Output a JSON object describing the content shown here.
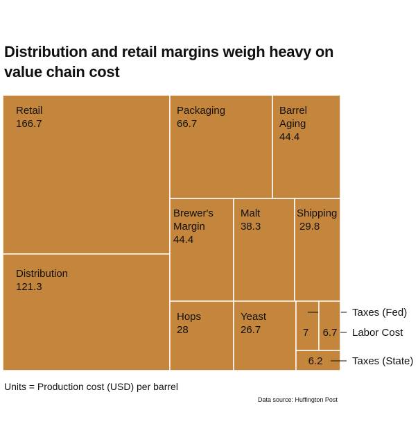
{
  "title_lines": [
    "Distribution and retail margins weigh heavy on",
    "value chain cost"
  ],
  "units_note": "Units = Production cost (USD) per barrel",
  "source_note": "Data source: Huffington Post",
  "colors": {
    "fill": "#C4853C",
    "border": "#ffffff",
    "leader": "#111111",
    "text": "#111111"
  },
  "chart_data": {
    "type": "treemap",
    "title": "Distribution and retail margins weigh heavy on value chain cost",
    "units": "Production cost (USD) per barrel",
    "items": [
      {
        "name": "Retail",
        "label_lines": [
          "Retail"
        ],
        "value": 166.7,
        "value_label": "166.7"
      },
      {
        "name": "Distribution",
        "label_lines": [
          "Distribution"
        ],
        "value": 121.3,
        "value_label": "121.3"
      },
      {
        "name": "Packaging",
        "label_lines": [
          "Packaging"
        ],
        "value": 66.7,
        "value_label": "66.7"
      },
      {
        "name": "Barrel Aging",
        "label_lines": [
          "Barrel",
          "Aging"
        ],
        "value": 44.4,
        "value_label": "44.4"
      },
      {
        "name": "Brewer's Margin",
        "label_lines": [
          "Brewer's",
          "Margin"
        ],
        "value": 44.4,
        "value_label": "44.4"
      },
      {
        "name": "Malt",
        "label_lines": [
          "Malt"
        ],
        "value": 38.3,
        "value_label": "38.3"
      },
      {
        "name": "Shipping",
        "label_lines": [
          "Shipping"
        ],
        "value": 29.8,
        "value_label": "29.8"
      },
      {
        "name": "Hops",
        "label_lines": [
          "Hops"
        ],
        "value": 28,
        "value_label": "28"
      },
      {
        "name": "Yeast",
        "label_lines": [
          "Yeast"
        ],
        "value": 26.7,
        "value_label": "26.7"
      },
      {
        "name": "Taxes (Fed)",
        "label_lines": [],
        "value": 7,
        "value_label": "7",
        "callout": "Taxes (Fed)"
      },
      {
        "name": "Labor Cost",
        "label_lines": [],
        "value": 6.7,
        "value_label": "6.7",
        "callout": "Labor Cost"
      },
      {
        "name": "Taxes (State)",
        "label_lines": [],
        "value": 6.2,
        "value_label": "6.2",
        "callout": "Taxes (State)"
      }
    ]
  }
}
